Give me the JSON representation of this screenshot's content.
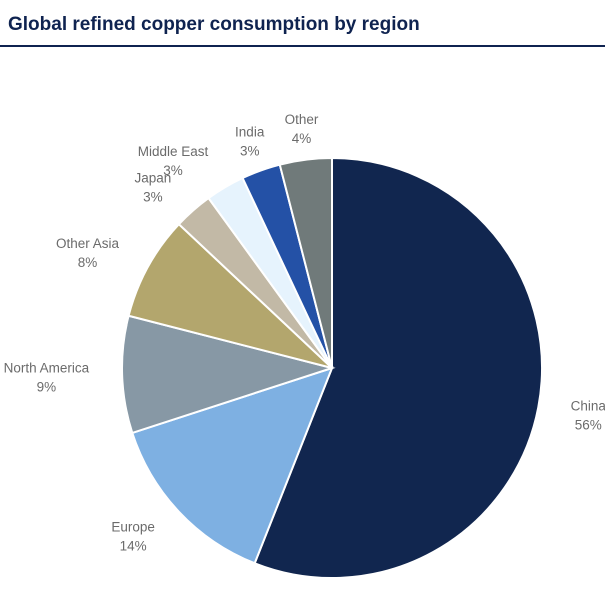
{
  "title": "Global refined copper consumption by region",
  "chart_data": {
    "type": "pie",
    "title": "Global refined copper consumption by region",
    "start": "12 o'clock",
    "direction": "clockwise",
    "slices": [
      {
        "name": "China",
        "value": 56,
        "label": "56%",
        "color": "#11264f"
      },
      {
        "name": "Europe",
        "value": 14,
        "label": "14%",
        "color": "#7eb0e2"
      },
      {
        "name": "North America",
        "value": 9,
        "label": "9%",
        "color": "#8798a5"
      },
      {
        "name": "Other Asia",
        "value": 8,
        "label": "8%",
        "color": "#b3a66d"
      },
      {
        "name": "Japan",
        "value": 3,
        "label": "3%",
        "color": "#c2b9a6"
      },
      {
        "name": "Middle East",
        "value": 3,
        "label": "3%",
        "color": "#e6f3fd"
      },
      {
        "name": "India",
        "value": 3,
        "label": "3%",
        "color": "#2451a6"
      },
      {
        "name": "Other",
        "value": 4,
        "label": "4%",
        "color": "#707a7a"
      }
    ]
  }
}
